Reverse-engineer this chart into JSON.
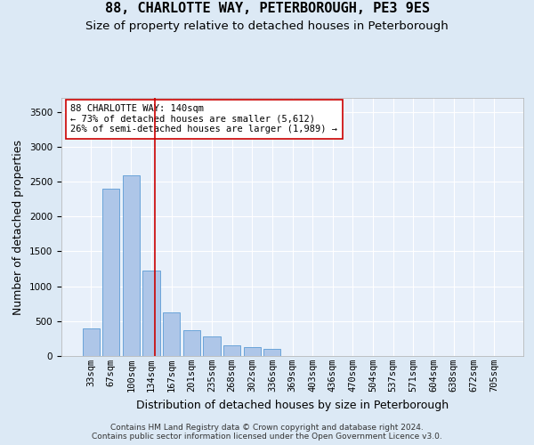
{
  "title": "88, CHARLOTTE WAY, PETERBOROUGH, PE3 9ES",
  "subtitle": "Size of property relative to detached houses in Peterborough",
  "xlabel": "Distribution of detached houses by size in Peterborough",
  "ylabel": "Number of detached properties",
  "categories": [
    "33sqm",
    "67sqm",
    "100sqm",
    "134sqm",
    "167sqm",
    "201sqm",
    "235sqm",
    "268sqm",
    "302sqm",
    "336sqm",
    "369sqm",
    "403sqm",
    "436sqm",
    "470sqm",
    "504sqm",
    "537sqm",
    "571sqm",
    "604sqm",
    "638sqm",
    "672sqm",
    "705sqm"
  ],
  "values": [
    390,
    2400,
    2590,
    1220,
    620,
    375,
    275,
    155,
    130,
    100,
    0,
    0,
    0,
    0,
    0,
    0,
    0,
    0,
    0,
    0,
    0
  ],
  "bar_color": "#aec6e8",
  "bar_edge_color": "#5b9bd5",
  "bg_color": "#dce9f5",
  "plot_bg_color": "#e8f0fa",
  "grid_color": "#ffffff",
  "vline_color": "#cc0000",
  "annotation_text": "88 CHARLOTTE WAY: 140sqm\n← 73% of detached houses are smaller (5,612)\n26% of semi-detached houses are larger (1,989) →",
  "annotation_box_color": "#ffffff",
  "annotation_box_edge": "#cc0000",
  "footnote": "Contains HM Land Registry data © Crown copyright and database right 2024.\nContains public sector information licensed under the Open Government Licence v3.0.",
  "ylim": [
    0,
    3700
  ],
  "yticks": [
    0,
    500,
    1000,
    1500,
    2000,
    2500,
    3000,
    3500
  ],
  "title_fontsize": 11,
  "subtitle_fontsize": 9.5,
  "ylabel_fontsize": 9,
  "xlabel_fontsize": 9,
  "tick_fontsize": 7.5,
  "footnote_fontsize": 6.5,
  "annot_fontsize": 7.5
}
